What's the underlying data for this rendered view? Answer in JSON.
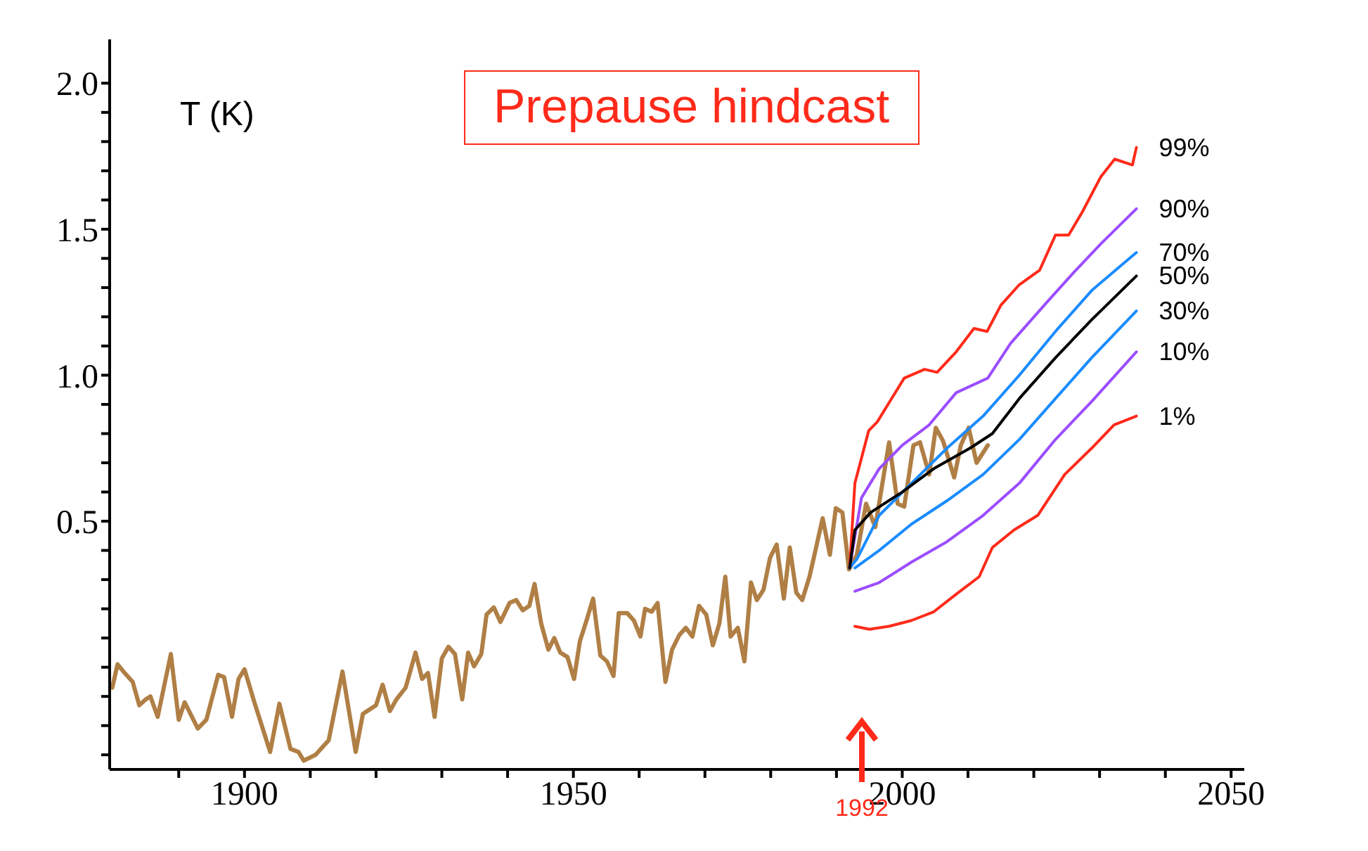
{
  "chart_data": {
    "type": "line",
    "title": "Prepause hindcast",
    "ylabel": "T (K)",
    "xlim": [
      1879.5,
      2052
    ],
    "ylim": [
      -0.35,
      2.15
    ],
    "xticks": [
      {
        "value": 1890,
        "label": null
      },
      1900,
      {
        "value": 1910,
        "label": null
      },
      {
        "value": 1920,
        "label": null
      },
      {
        "value": 1930,
        "label": null
      },
      {
        "value": 1940,
        "label": null
      },
      1950,
      {
        "value": 1960,
        "label": null
      },
      {
        "value": 1970,
        "label": null
      },
      {
        "value": 1980,
        "label": null
      },
      {
        "value": 1990,
        "label": null
      },
      2000,
      {
        "value": 2010,
        "label": null
      },
      {
        "value": 2020,
        "label": null
      },
      {
        "value": 2030,
        "label": null
      },
      {
        "value": 2040,
        "label": null
      },
      2050
    ],
    "yticks": [
      {
        "value": -0.3,
        "label": null
      },
      {
        "value": -0.2,
        "label": null
      },
      {
        "value": -0.1,
        "label": null
      },
      {
        "value": 0,
        "label": null
      },
      {
        "value": 0.1,
        "label": null
      },
      {
        "value": 0.2,
        "label": null
      },
      {
        "value": 0.3,
        "label": null
      },
      {
        "value": 0.4,
        "label": null
      },
      0.5,
      {
        "value": 0.6,
        "label": null
      },
      {
        "value": 0.7,
        "label": null
      },
      {
        "value": 0.8,
        "label": null
      },
      {
        "value": 0.9,
        "label": null
      },
      {
        "value": 1,
        "label": "1.0"
      },
      {
        "value": 1.1,
        "label": null
      },
      {
        "value": 1.2,
        "label": null
      },
      {
        "value": 1.3,
        "label": null
      },
      {
        "value": 1.4,
        "label": null
      },
      1.5,
      {
        "value": 1.6,
        "label": null
      },
      {
        "value": 1.7,
        "label": null
      },
      {
        "value": 1.8,
        "label": null
      },
      {
        "value": 1.9,
        "label": null
      },
      {
        "value": 2,
        "label": "2.0"
      }
    ],
    "grid": false,
    "legend": false,
    "marker": "none",
    "line_style": "solid",
    "annotations": [
      "1992"
    ],
    "series": [
      {
        "color": "#b07f45",
        "x": [
          1879.9,
          1880.7,
          1881.6,
          1883,
          1884,
          1885,
          1885.7,
          1886.8,
          1888.8,
          1890,
          1890.9,
          1892.9,
          1894.2,
          1896,
          1896.9,
          1898.1,
          1899.1,
          1900,
          1901.5,
          1903.9,
          1905.3,
          1907,
          1908.2,
          1909,
          1910.8,
          1912.8,
          1914.9,
          1916.9,
          1918,
          1920,
          1921,
          1922.1,
          1923.1,
          1924.5,
          1926,
          1927,
          1927.9,
          1928.9,
          1930,
          1931,
          1932,
          1933.1,
          1934,
          1934.9,
          1936,
          1936.8,
          1937.9,
          1938.9,
          1940.3,
          1941.3,
          1942.3,
          1943.3,
          1944.1,
          1945.1,
          1946.2,
          1947.1,
          1948,
          1949.1,
          1950.1,
          1951,
          1952,
          1953,
          1954.1,
          1955.1,
          1956.1,
          1956.9,
          1958.2,
          1959.2,
          1960.2,
          1960.9,
          1961.9,
          1962.8,
          1964,
          1965,
          1966.1,
          1967.1,
          1968.1,
          1969.1,
          1970.2,
          1971.2,
          1972.2,
          1973.1,
          1973.9,
          1975,
          1976,
          1977,
          1977.9,
          1978.9,
          1979.9,
          1980.9,
          1982,
          1982.9,
          1983.9,
          1984.8,
          1985.9,
          1987,
          1987.9,
          1989,
          1989.9,
          1990.9,
          1991.9,
          1993.1,
          1994.5,
          1995.9,
          1998,
          1999.3,
          2000.3,
          2001.7,
          2002.7,
          2004.1,
          2005.1,
          2006.2,
          2007.9,
          2008.9,
          2010.1,
          2011.3,
          2013
        ],
        "values": [
          -0.07,
          0.01,
          -0.015,
          -0.05,
          -0.13,
          -0.11,
          -0.1,
          -0.17,
          0.045,
          -0.18,
          -0.12,
          -0.21,
          -0.18,
          -0.026,
          -0.034,
          -0.17,
          -0.04,
          -0.007,
          -0.12,
          -0.29,
          -0.125,
          -0.28,
          -0.29,
          -0.32,
          -0.3,
          -0.25,
          -0.015,
          -0.29,
          -0.16,
          -0.13,
          -0.06,
          -0.15,
          -0.11,
          -0.07,
          0.05,
          -0.04,
          -0.02,
          -0.17,
          0.03,
          0.07,
          0.045,
          -0.11,
          0.05,
          0.003,
          0.045,
          0.18,
          0.205,
          0.155,
          0.22,
          0.23,
          0.195,
          0.21,
          0.285,
          0.15,
          0.06,
          0.1,
          0.05,
          0.035,
          -0.04,
          0.09,
          0.16,
          0.235,
          0.04,
          0.02,
          -0.03,
          0.185,
          0.185,
          0.16,
          0.105,
          0.2,
          0.19,
          0.22,
          -0.05,
          0.06,
          0.11,
          0.135,
          0.105,
          0.21,
          0.18,
          0.075,
          0.15,
          0.31,
          0.105,
          0.135,
          0.02,
          0.29,
          0.23,
          0.265,
          0.375,
          0.42,
          0.235,
          0.41,
          0.255,
          0.23,
          0.31,
          0.42,
          0.51,
          0.385,
          0.545,
          0.53,
          0.335,
          0.385,
          0.56,
          0.48,
          0.77,
          0.56,
          0.55,
          0.76,
          0.77,
          0.66,
          0.82,
          0.775,
          0.65,
          0.76,
          0.82,
          0.7,
          0.76
        ]
      },
      {
        "name": "99%",
        "color": "#ff2a1a",
        "x": [
          1992,
          1992.8,
          1994.9,
          1996.2,
          2000.3,
          2003.4,
          2005.3,
          2008.2,
          2010.9,
          2012.9,
          2015,
          2017.8,
          2020.9,
          2023.3,
          2025.3,
          2027.4,
          2030.2,
          2032.3,
          2035,
          2035.6
        ],
        "values": [
          0.34,
          0.63,
          0.81,
          0.84,
          0.99,
          1.02,
          1.01,
          1.08,
          1.16,
          1.15,
          1.24,
          1.31,
          1.36,
          1.48,
          1.48,
          1.56,
          1.68,
          1.74,
          1.72,
          1.78
        ]
      },
      {
        "name": "90%",
        "color": "#9b4dff",
        "x": [
          1992,
          1993.8,
          1996.5,
          2000,
          2004.1,
          2008.2,
          2013,
          2016.5,
          2022,
          2026,
          2030.2,
          2035.6
        ],
        "values": [
          0.34,
          0.58,
          0.68,
          0.76,
          0.83,
          0.94,
          0.99,
          1.11,
          1.25,
          1.35,
          1.45,
          1.57
        ]
      },
      {
        "name": "70%",
        "color": "#1a8cff",
        "x": [
          1992,
          1993.1,
          1996.5,
          2001.4,
          2006.8,
          2012.3,
          2017.8,
          2023.3,
          2028.8,
          2035.6
        ],
        "values": [
          0.34,
          0.37,
          0.52,
          0.63,
          0.75,
          0.86,
          1.0,
          1.15,
          1.29,
          1.42
        ]
      },
      {
        "name": "50%",
        "color": "#000000",
        "x": [
          1992,
          1992.8,
          1995.2,
          2000,
          2004.8,
          2010.3,
          2013.7,
          2017.8,
          2023.3,
          2028.8,
          2035.6
        ],
        "values": [
          0.34,
          0.47,
          0.53,
          0.6,
          0.68,
          0.75,
          0.8,
          0.92,
          1.06,
          1.19,
          1.34
        ]
      },
      {
        "name": "30%",
        "color": "#1a8cff",
        "x": [
          1992.8,
          1996.5,
          2001.4,
          2006.8,
          2012.3,
          2017.8,
          2023.3,
          2028.8,
          2035.6
        ],
        "values": [
          0.34,
          0.4,
          0.49,
          0.57,
          0.66,
          0.78,
          0.92,
          1.06,
          1.22
        ]
      },
      {
        "name": "10%",
        "color": "#9b4dff",
        "x": [
          1992.8,
          1996.5,
          2001.4,
          2006.8,
          2012.3,
          2017.8,
          2023.3,
          2028.8,
          2035.6
        ],
        "values": [
          0.26,
          0.29,
          0.36,
          0.43,
          0.52,
          0.63,
          0.78,
          0.91,
          1.08
        ]
      },
      {
        "name": "1%",
        "color": "#ff2a1a",
        "x": [
          1992.8,
          1995,
          1998,
          2001.4,
          2004.8,
          2008.2,
          2011.7,
          2013.7,
          2017,
          2020.6,
          2024.7,
          2028.8,
          2032.2,
          2035.6
        ],
        "values": [
          0.14,
          0.13,
          0.14,
          0.16,
          0.19,
          0.25,
          0.31,
          0.41,
          0.47,
          0.52,
          0.66,
          0.75,
          0.83,
          0.86
        ]
      }
    ]
  }
}
